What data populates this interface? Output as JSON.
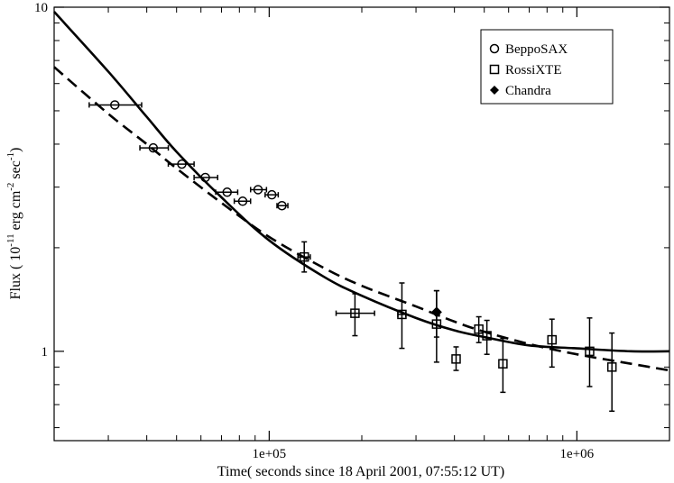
{
  "chart_data": {
    "type": "scatter",
    "xlabel": "Time( seconds since 18 April 2001, 07:55:12 UT)",
    "ylabel": {
      "prefix": "Flux ( 10",
      "exp1": "-11",
      "mid1": " erg cm",
      "exp2": "-2",
      "mid2": " sec",
      "exp3": "-1",
      "suffix": ")"
    },
    "x_scale": "log",
    "y_scale": "log",
    "xlim": [
      20000,
      2000000
    ],
    "ylim": [
      0.55,
      10
    ],
    "x_ticks": [
      {
        "value": 100000,
        "label": "1e+05"
      },
      {
        "value": 1000000,
        "label": "1e+06"
      }
    ],
    "y_ticks": [
      {
        "value": 1,
        "label": "1"
      },
      {
        "value": 10,
        "label": "10"
      }
    ],
    "grid": false,
    "legend_position": "top-right",
    "legend": [
      {
        "name": "BeppoSAX",
        "marker": "circle"
      },
      {
        "name": "RossiXTE",
        "marker": "square"
      },
      {
        "name": "Chandra",
        "marker": "diamond"
      }
    ],
    "series": [
      {
        "name": "BeppoSAX",
        "marker": "circle",
        "points": [
          {
            "x": 31500,
            "y": 5.2,
            "xerr": [
              26000,
              38500
            ]
          },
          {
            "x": 42000,
            "y": 3.9,
            "xerr": [
              38000,
              47000
            ]
          },
          {
            "x": 52000,
            "y": 3.5,
            "xerr": [
              47000,
              57000
            ]
          },
          {
            "x": 62000,
            "y": 3.2,
            "xerr": [
              57000,
              68000
            ]
          },
          {
            "x": 73000,
            "y": 2.9,
            "xerr": [
              67000,
              79000
            ]
          },
          {
            "x": 82000,
            "y": 2.73,
            "xerr": [
              77000,
              87000
            ]
          },
          {
            "x": 92000,
            "y": 2.95,
            "xerr": [
              87000,
              98000
            ]
          },
          {
            "x": 102000,
            "y": 2.85,
            "xerr": [
              97000,
              107000
            ]
          },
          {
            "x": 110000,
            "y": 2.65,
            "xerr": [
              106000,
              115000
            ]
          }
        ]
      },
      {
        "name": "RossiXTE",
        "marker": "square",
        "points": [
          {
            "x": 130000,
            "y": 1.88,
            "xerr": [
              124000,
              136000
            ],
            "yerr": [
              1.7,
              2.08
            ]
          },
          {
            "x": 190000,
            "y": 1.29,
            "xerr": [
              165000,
              220000
            ],
            "yerr": [
              1.11,
              1.47
            ]
          },
          {
            "x": 270000,
            "y": 1.28,
            "xerr": [
              262000,
              278000
            ],
            "yerr": [
              1.02,
              1.58
            ]
          },
          {
            "x": 350000,
            "y": 1.2,
            "yerr": [
              0.93,
              1.5
            ]
          },
          {
            "x": 405000,
            "y": 0.95,
            "yerr": [
              0.88,
              1.03
            ]
          },
          {
            "x": 480000,
            "y": 1.16,
            "yerr": [
              1.06,
              1.26
            ]
          },
          {
            "x": 510000,
            "y": 1.11,
            "yerr": [
              0.98,
              1.23
            ]
          },
          {
            "x": 575000,
            "y": 0.92,
            "yerr": [
              0.76,
              1.09
            ]
          },
          {
            "x": 830000,
            "y": 1.08,
            "yerr": [
              0.9,
              1.24
            ]
          },
          {
            "x": 1100000,
            "y": 1.0,
            "yerr": [
              0.79,
              1.25
            ]
          },
          {
            "x": 1300000,
            "y": 0.9,
            "yerr": [
              0.67,
              1.13
            ]
          }
        ]
      },
      {
        "name": "Chandra",
        "marker": "diamond",
        "points": [
          {
            "x": 350000,
            "y": 1.3,
            "yerr": [
              1.1,
              1.5
            ]
          }
        ]
      }
    ],
    "curves": [
      {
        "style": "solid",
        "points": [
          [
            20000,
            9.7
          ],
          [
            30000,
            6.5
          ],
          [
            40000,
            4.8
          ],
          [
            50000,
            3.8
          ],
          [
            70000,
            2.8
          ],
          [
            100000,
            2.1
          ],
          [
            150000,
            1.65
          ],
          [
            200000,
            1.45
          ],
          [
            300000,
            1.25
          ],
          [
            400000,
            1.15
          ],
          [
            500000,
            1.1
          ],
          [
            700000,
            1.04
          ],
          [
            1000000,
            1.02
          ],
          [
            1500000,
            1.0
          ],
          [
            2000000,
            1.0
          ]
        ]
      },
      {
        "style": "dashed",
        "points": [
          [
            20000,
            6.7
          ],
          [
            30000,
            4.9
          ],
          [
            40000,
            4.0
          ],
          [
            50000,
            3.4
          ],
          [
            70000,
            2.7
          ],
          [
            100000,
            2.15
          ],
          [
            150000,
            1.75
          ],
          [
            200000,
            1.55
          ],
          [
            300000,
            1.35
          ],
          [
            400000,
            1.22
          ],
          [
            500000,
            1.14
          ],
          [
            700000,
            1.05
          ],
          [
            1000000,
            0.98
          ],
          [
            1500000,
            0.92
          ],
          [
            2000000,
            0.88
          ]
        ]
      }
    ]
  }
}
